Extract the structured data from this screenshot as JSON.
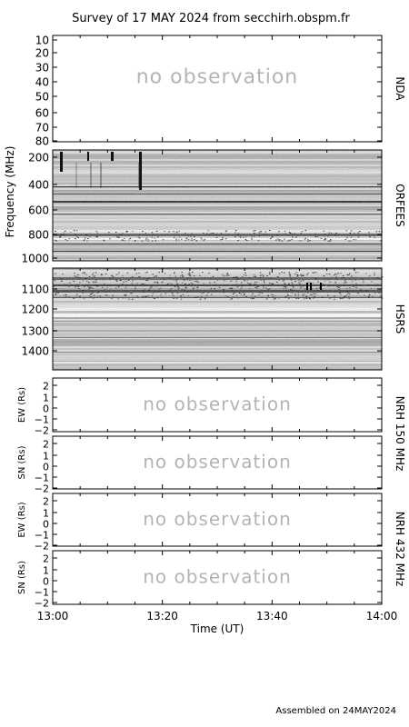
{
  "title": "Survey of 17 MAY 2024 from secchirh.obspm.fr",
  "footer": "Assembled on 24MAY2024",
  "no_observation_text": "no observation",
  "chart_data": {
    "type": "heatmap",
    "title": "Survey of 17 MAY 2024 from secchirh.obspm.fr",
    "xlabel": "Time (UT)",
    "x_ticks": [
      "13:00",
      "13:20",
      "13:40",
      "14:00"
    ],
    "xlim": [
      "13:00",
      "14:00"
    ],
    "frequency_ylabel": "Frequency (MHz)",
    "panels": [
      {
        "id": "nda",
        "label": "NDA",
        "status": "no observation",
        "y_ticks": [
          "10",
          "20",
          "30",
          "40",
          "50",
          "60",
          "70",
          "80"
        ],
        "ylim": [
          10,
          80
        ]
      },
      {
        "id": "orfees",
        "label": "ORFEES",
        "status": "observed",
        "y_ticks": [
          "200",
          "400",
          "600",
          "800",
          "1000"
        ],
        "ylim": [
          140,
          1000
        ]
      },
      {
        "id": "hsrs",
        "label": "HSRS",
        "status": "observed",
        "y_ticks": [
          "1100",
          "1200",
          "1300",
          "1400"
        ],
        "ylim": [
          1010,
          1480
        ]
      },
      {
        "id": "nrh150_ew",
        "ylabel": "EW (Rs)",
        "status": "no observation",
        "y_ticks": [
          "2",
          "1",
          "0",
          "−1",
          "−2"
        ],
        "ylim": [
          -2.3,
          2.3
        ]
      },
      {
        "id": "nrh150_sn",
        "ylabel": "SN (Rs)",
        "status": "no observation",
        "y_ticks": [
          "2",
          "1",
          "0",
          "−1",
          "−2"
        ],
        "ylim": [
          -2.3,
          2.3
        ]
      },
      {
        "id": "nrh432_ew",
        "ylabel": "EW (Rs)",
        "status": "no observation",
        "y_ticks": [
          "2",
          "1",
          "0",
          "−1",
          "−2"
        ],
        "ylim": [
          -2.3,
          2.3
        ]
      },
      {
        "id": "nrh432_sn",
        "ylabel": "SN (Rs)",
        "status": "no observation",
        "y_ticks": [
          "2",
          "1",
          "0",
          "−1",
          "−2"
        ],
        "ylim": [
          -2.3,
          2.3
        ]
      }
    ],
    "group_labels": {
      "nrh150": "NRH 150 MHz",
      "nrh432": "NRH 432 MHz"
    }
  }
}
